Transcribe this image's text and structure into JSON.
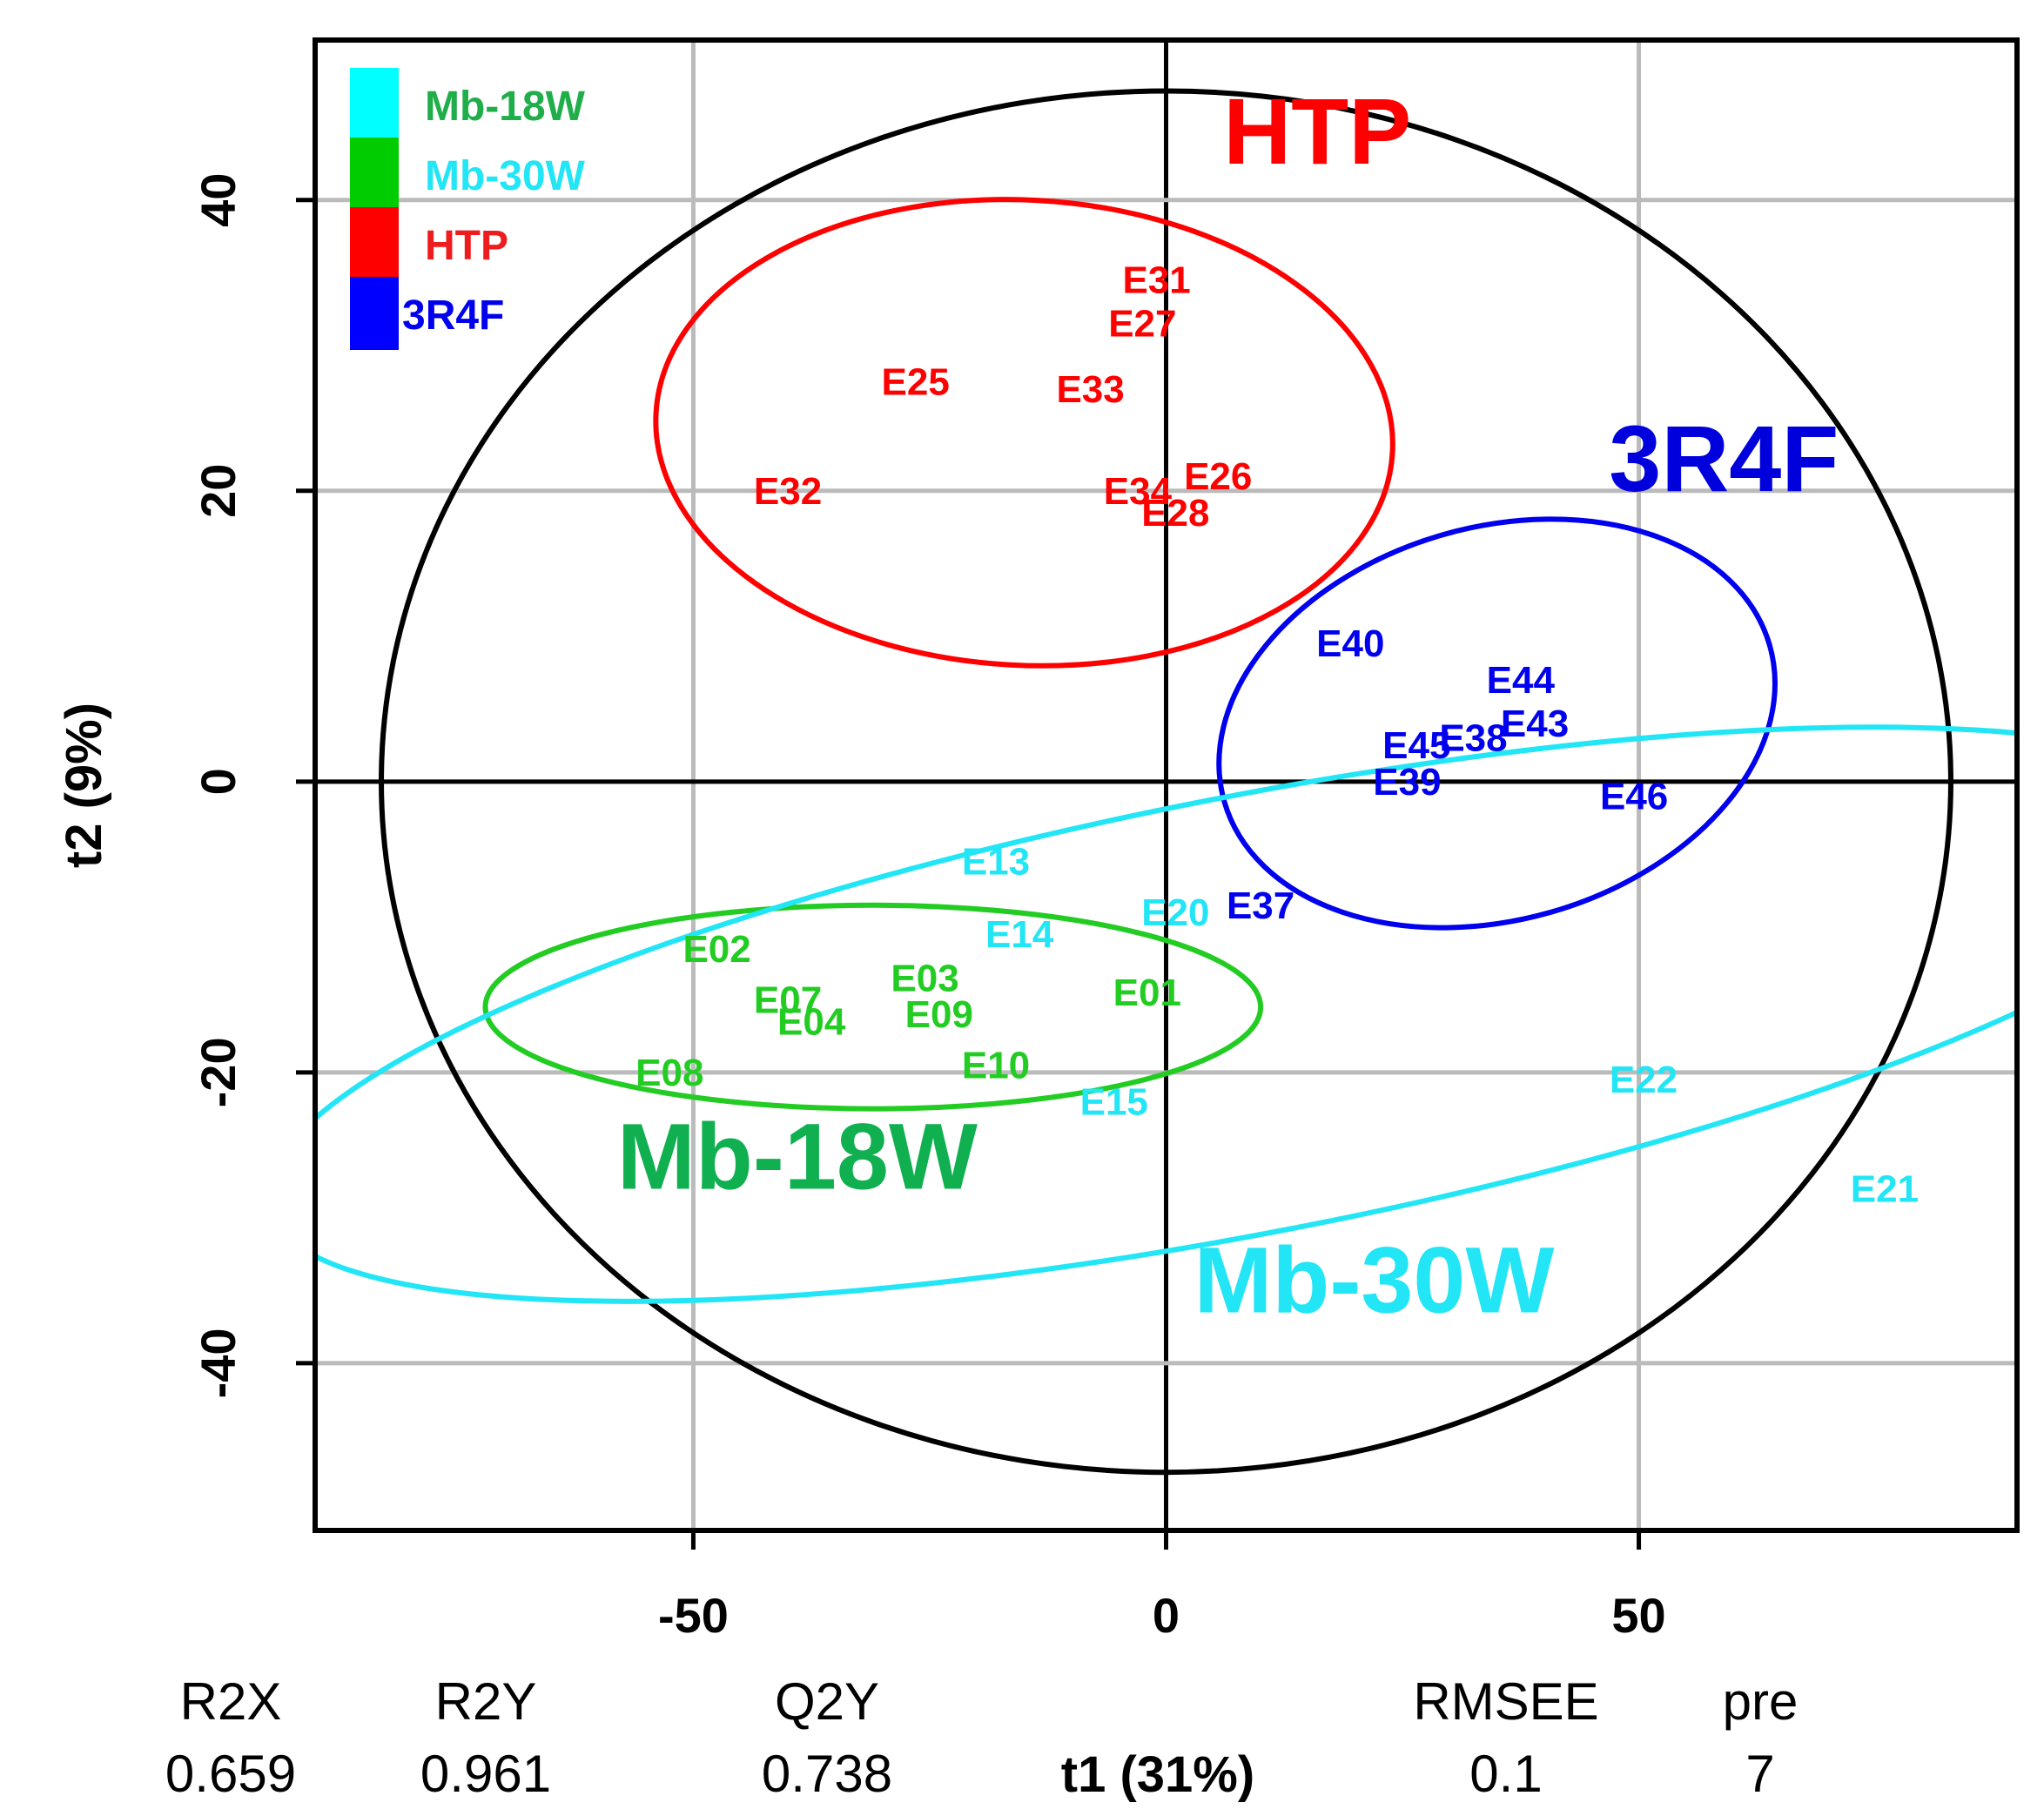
{
  "chart_data": {
    "type": "scatter",
    "xlabel": "t1 (31%)",
    "ylabel": "t2 (9%)",
    "xlim": [
      -90,
      90
    ],
    "ylim": [
      -51.5,
      51
    ],
    "x_ticks": [
      -50,
      0,
      50
    ],
    "y_ticks": [
      -40,
      -20,
      0,
      20,
      40
    ],
    "x_tick_labels": [
      "-50",
      "0",
      "50"
    ],
    "y_tick_labels": [
      "-40",
      "-20",
      "0",
      "20",
      "40"
    ],
    "grid": true,
    "legend_position": "top-left",
    "legend": [
      {
        "label": "Mb-18W",
        "swatch_color": "#00ffff",
        "text_color": "#1fae4a"
      },
      {
        "label": "Mb-30W",
        "swatch_color": "#00cc00",
        "text_color": "#22e5f5"
      },
      {
        "label": "HTP",
        "swatch_color": "#ff0000",
        "text_color": "#ee1c1c"
      },
      {
        "label": "3R4F",
        "swatch_color": "#0000ff",
        "text_color": "#0000ee"
      }
    ],
    "group_labels": [
      {
        "text": "HTP",
        "x": 16,
        "y": 42.5,
        "color": "#ff0000",
        "size": "large"
      },
      {
        "text": "3R4F",
        "x": 59,
        "y": 20,
        "color": "#0000dd",
        "size": "large"
      },
      {
        "text": "Mb-18W",
        "x": -39,
        "y": -28,
        "color": "#10b050",
        "size": "large"
      },
      {
        "text": "Mb-30W",
        "x": 22,
        "y": -36.5,
        "color": "#22e5f5",
        "size": "large"
      }
    ],
    "series": [
      {
        "name": "HTP",
        "color": "#ff0000",
        "points": [
          {
            "label": "E31",
            "x": -1,
            "y": 34.5
          },
          {
            "label": "E27",
            "x": -2.5,
            "y": 31.5
          },
          {
            "label": "E25",
            "x": -26.5,
            "y": 27.5
          },
          {
            "label": "E33",
            "x": -8,
            "y": 27
          },
          {
            "label": "E32",
            "x": -40,
            "y": 20
          },
          {
            "label": "E34",
            "x": -3,
            "y": 20
          },
          {
            "label": "E26",
            "x": 5.5,
            "y": 21
          },
          {
            "label": "E28",
            "x": 1,
            "y": 18.5
          }
        ],
        "ellipse": {
          "cx": -15,
          "cy": 24,
          "rx": 39,
          "ry": 16,
          "angle_deg": -3
        }
      },
      {
        "name": "3R4F",
        "color": "#0000ee",
        "points": [
          {
            "label": "E40",
            "x": 19.5,
            "y": 9.5
          },
          {
            "label": "E44",
            "x": 37.5,
            "y": 7
          },
          {
            "label": "E43",
            "x": 39,
            "y": 4
          },
          {
            "label": "E45",
            "x": 26.5,
            "y": 2.5
          },
          {
            "label": "E38",
            "x": 32.5,
            "y": 3
          },
          {
            "label": "E39",
            "x": 25.5,
            "y": 0
          },
          {
            "label": "E46",
            "x": 49.5,
            "y": -1
          },
          {
            "label": "E37",
            "x": 10,
            "y": -8.5
          }
        ],
        "ellipse": {
          "cx": 35,
          "cy": 4,
          "rx": 30,
          "ry": 13.5,
          "angle_deg": 16
        }
      },
      {
        "name": "Mb-18W",
        "color": "#22cc22",
        "points": [
          {
            "label": "E02",
            "x": -47.5,
            "y": -11.5
          },
          {
            "label": "E03",
            "x": -25.5,
            "y": -13.5
          },
          {
            "label": "E07",
            "x": -40,
            "y": -15
          },
          {
            "label": "E04",
            "x": -37.5,
            "y": -16.5
          },
          {
            "label": "E09",
            "x": -24,
            "y": -16
          },
          {
            "label": "E01",
            "x": -2,
            "y": -14.5
          },
          {
            "label": "E10",
            "x": -18,
            "y": -19.5
          },
          {
            "label": "E08",
            "x": -52.5,
            "y": -20
          }
        ],
        "ellipse": {
          "cx": -31,
          "cy": -15.5,
          "rx": 41,
          "ry": 7,
          "angle_deg": 0
        }
      },
      {
        "name": "Mb-30W",
        "color": "#22e5f5",
        "points": [
          {
            "label": "E13",
            "x": -18,
            "y": -5.5
          },
          {
            "label": "E14",
            "x": -15.5,
            "y": -10.5
          },
          {
            "label": "E20",
            "x": 1,
            "y": -9
          },
          {
            "label": "E15",
            "x": -5.5,
            "y": -22
          },
          {
            "label": "E22",
            "x": 50.5,
            "y": -20.5
          },
          {
            "label": "E21",
            "x": 76,
            "y": -28
          }
        ],
        "ellipse": {
          "cx": 9,
          "cy": -16,
          "rx": 106,
          "ry": 15,
          "angle_deg": 11
        }
      }
    ],
    "overall_ellipse": {
      "cx": 0,
      "cy": 0,
      "rx": 83,
      "ry": 47.5
    },
    "stats": [
      {
        "name": "R2X",
        "value": "0.659"
      },
      {
        "name": "R2Y",
        "value": "0.961"
      },
      {
        "name": "Q2Y",
        "value": "0.738"
      },
      {
        "name": "RMSEE",
        "value": "0.1"
      },
      {
        "name": "pre",
        "value": "7"
      }
    ]
  }
}
